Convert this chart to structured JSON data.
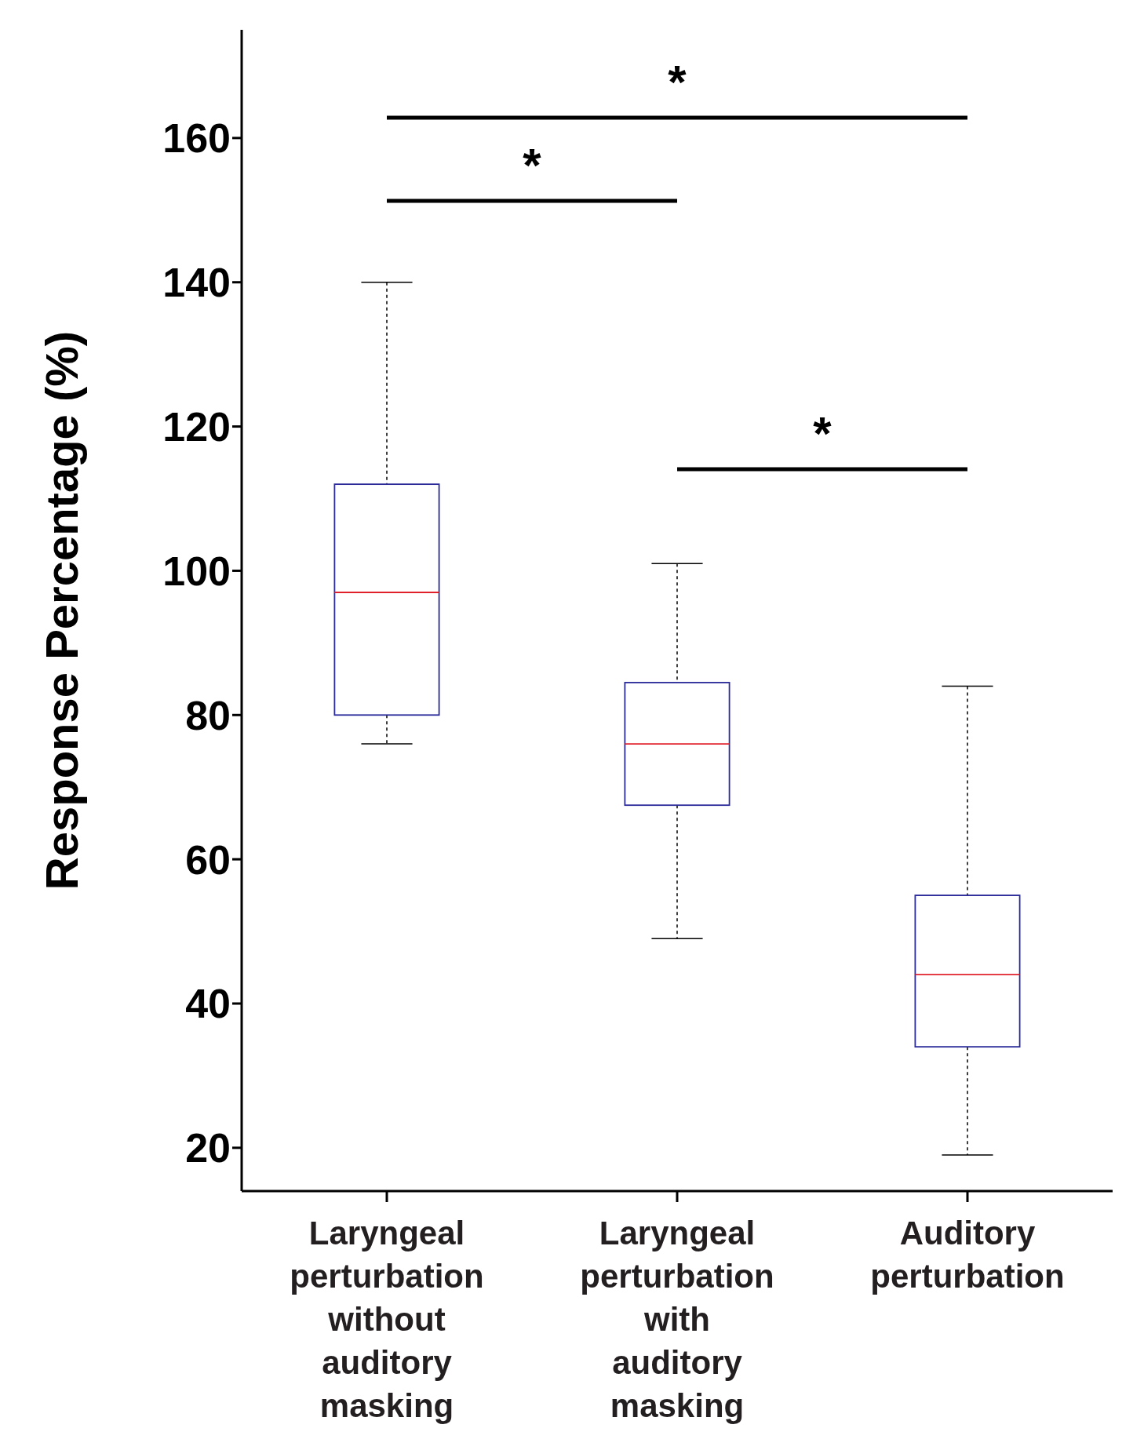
{
  "chart_data": {
    "type": "box",
    "ylabel": "Response Percentage (%)",
    "categories": [
      "Laryngeal perturbation without auditory masking",
      "Laryngeal perturbation with auditory masking",
      "Auditory perturbation"
    ],
    "series": [
      {
        "color": "#2a2a9a",
        "boxes": [
          {
            "low": 76,
            "q1": 80,
            "median": 97,
            "q3": 112,
            "high": 140
          },
          {
            "low": 49,
            "q1": 67.5,
            "median": 76,
            "q3": 84.5,
            "high": 101
          },
          {
            "low": 19,
            "q1": 34,
            "median": 44,
            "q3": 55,
            "high": 84
          }
        ]
      }
    ],
    "ylim": [
      14,
      175
    ],
    "yticks": [
      20,
      40,
      60,
      80,
      100,
      120,
      140,
      160
    ],
    "annotations": [
      "*",
      "*",
      "*"
    ]
  }
}
